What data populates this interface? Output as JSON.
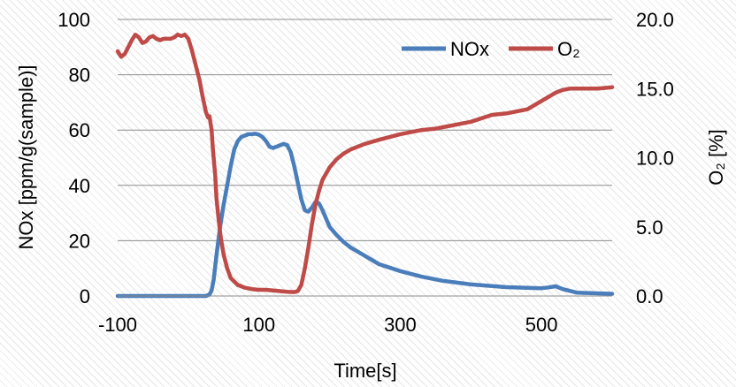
{
  "chart_data": {
    "type": "line",
    "title": "",
    "xlabel": "Time[s]",
    "ylabel": "NOx [ppm/g(sample)]",
    "y2label": "O₂ [%]",
    "xlim": [
      -100,
      600
    ],
    "ylim": [
      0,
      100
    ],
    "y2lim": [
      0,
      20
    ],
    "x_ticks": [
      -100,
      100,
      300,
      500
    ],
    "x_tick_labels": [
      "-100",
      "100",
      "300",
      "500"
    ],
    "y_ticks": [
      0,
      20,
      40,
      60,
      80,
      100
    ],
    "y_tick_labels": [
      "0",
      "20",
      "40",
      "60",
      "80",
      "100"
    ],
    "y2_ticks": [
      0,
      5,
      10,
      15,
      20
    ],
    "y2_tick_labels": [
      "0.0",
      "5.0",
      "10.0",
      "15.0",
      "20.0"
    ],
    "grid": true,
    "legend_position": "top-right",
    "series": [
      {
        "name": "NOx",
        "axis": "left",
        "color": "#4a7ebb",
        "x": [
          -100,
          -50,
          0,
          25,
          30,
          33,
          36,
          40,
          45,
          50,
          55,
          60,
          65,
          70,
          75,
          80,
          85,
          90,
          95,
          100,
          105,
          110,
          115,
          120,
          125,
          130,
          135,
          140,
          145,
          150,
          155,
          160,
          165,
          170,
          175,
          180,
          185,
          190,
          195,
          200,
          210,
          220,
          230,
          250,
          270,
          300,
          330,
          360,
          400,
          450,
          500,
          510,
          520,
          530,
          550,
          600
        ],
        "y": [
          0,
          0,
          0,
          0,
          0.5,
          2,
          6,
          15,
          25,
          33,
          40,
          47,
          53,
          56,
          57.5,
          58,
          58.5,
          58.5,
          58.7,
          58.3,
          57.5,
          56,
          54,
          53.5,
          54,
          54.5,
          55,
          54.5,
          52,
          47,
          41,
          35,
          31,
          30.5,
          32,
          34,
          33.5,
          31,
          28,
          25,
          22,
          19.5,
          17.5,
          14.5,
          11.5,
          9,
          7,
          5.5,
          4.2,
          3.2,
          2.8,
          3.1,
          3.5,
          2.5,
          1.2,
          0.8
        ]
      },
      {
        "name": "O₂",
        "axis": "right",
        "color": "#be4b48",
        "x": [
          -100,
          -95,
          -90,
          -85,
          -80,
          -75,
          -70,
          -65,
          -60,
          -55,
          -50,
          -45,
          -40,
          -35,
          -30,
          -25,
          -20,
          -15,
          -10,
          -5,
          0,
          5,
          10,
          13,
          16,
          20,
          25,
          28,
          30,
          33,
          35,
          38,
          40,
          43,
          46,
          50,
          55,
          60,
          70,
          80,
          90,
          100,
          110,
          120,
          130,
          140,
          150,
          155,
          160,
          165,
          170,
          175,
          180,
          185,
          190,
          200,
          210,
          220,
          230,
          250,
          270,
          300,
          330,
          350,
          370,
          400,
          430,
          450,
          480,
          500,
          520,
          530,
          540,
          560,
          580,
          600
        ],
        "y": [
          17.7,
          17.3,
          17.5,
          18.0,
          18.5,
          18.9,
          18.7,
          18.3,
          18.4,
          18.7,
          18.8,
          18.6,
          18.5,
          18.6,
          18.6,
          18.6,
          18.7,
          18.9,
          18.8,
          18.9,
          18.6,
          17.8,
          16.8,
          16.2,
          15.6,
          14.5,
          13.3,
          12.9,
          13.0,
          12.0,
          10.5,
          8.8,
          7.0,
          5.5,
          4.2,
          3.0,
          2.0,
          1.3,
          0.8,
          0.6,
          0.5,
          0.45,
          0.45,
          0.4,
          0.35,
          0.3,
          0.28,
          0.35,
          0.8,
          2.0,
          3.5,
          5.2,
          6.6,
          7.6,
          8.4,
          9.3,
          9.9,
          10.3,
          10.6,
          11.0,
          11.3,
          11.7,
          12.0,
          12.1,
          12.3,
          12.6,
          13.1,
          13.2,
          13.5,
          14.1,
          14.7,
          14.9,
          15.0,
          15.0,
          15.0,
          15.1
        ]
      }
    ]
  }
}
